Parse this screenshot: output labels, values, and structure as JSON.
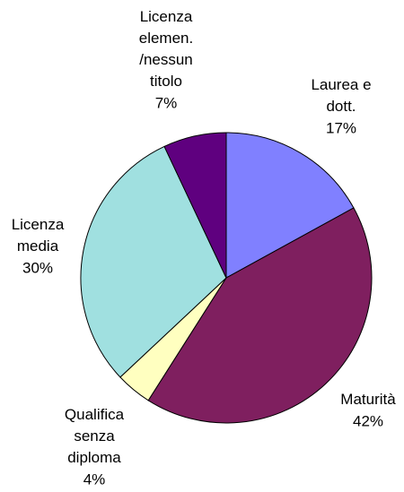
{
  "chart_data": {
    "type": "pie",
    "categories": [
      "Laurea e\ndott.",
      "Maturità",
      "Qualifica\nsenza\ndiploma",
      "Licenza\nmedia",
      "Licenza\nelemen.\n/nessun\ntitolo"
    ],
    "values": [
      17,
      42,
      4,
      30,
      7
    ],
    "value_labels": [
      "17%",
      "42%",
      "4%",
      "30%",
      "7%"
    ],
    "colors": [
      "#8080ff",
      "#7f1f5f",
      "#ffffc0",
      "#a0e0e0",
      "#5f007f"
    ]
  }
}
